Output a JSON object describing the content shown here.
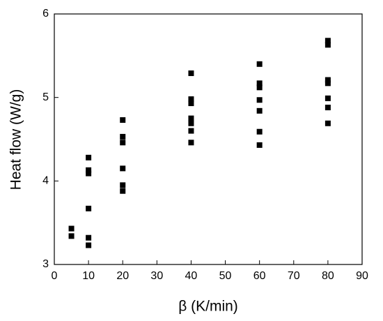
{
  "chart_data": {
    "type": "scatter",
    "x_label": "β (K/min)",
    "y_label": "Heat flow (W/g)",
    "x": [
      5,
      5,
      10,
      10,
      10,
      10,
      10,
      10,
      20,
      20,
      20,
      20,
      20,
      20,
      40,
      40,
      40,
      40,
      40,
      40,
      40,
      60,
      60,
      60,
      60,
      60,
      60,
      60,
      80,
      80,
      80,
      80,
      80,
      80,
      80
    ],
    "values": [
      3.43,
      3.34,
      4.28,
      4.13,
      4.09,
      3.67,
      3.32,
      3.23,
      4.73,
      4.53,
      4.46,
      4.15,
      3.95,
      3.88,
      5.29,
      4.98,
      4.93,
      4.75,
      4.69,
      4.6,
      4.46,
      5.4,
      5.17,
      5.12,
      4.97,
      4.84,
      4.59,
      4.43,
      5.68,
      5.63,
      5.21,
      5.17,
      4.99,
      4.88,
      4.69
    ],
    "color": "#000000",
    "xlim": [
      0,
      90
    ],
    "xticks": [
      0,
      10,
      20,
      30,
      40,
      50,
      60,
      70,
      80,
      90
    ],
    "ylim": [
      3,
      6
    ],
    "yticks": [
      3,
      4,
      5,
      6
    ]
  }
}
